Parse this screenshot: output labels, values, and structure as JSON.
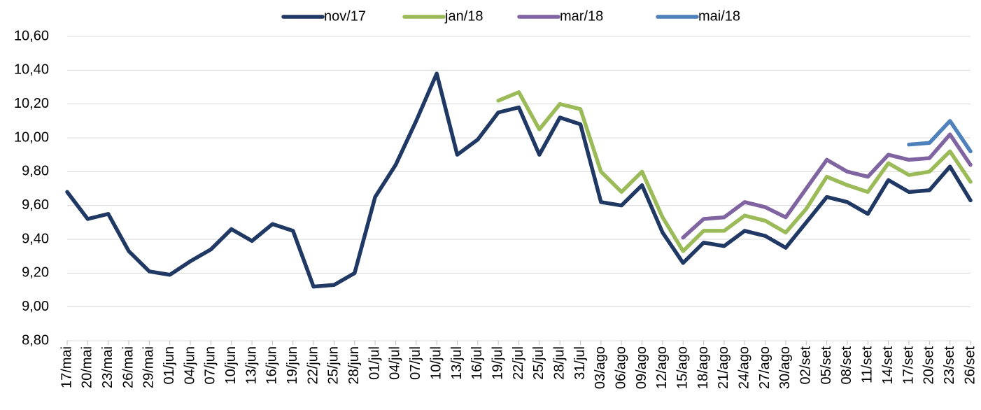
{
  "chart_data": {
    "type": "line",
    "categories": [
      "17/mai",
      "20/mai",
      "23/mai",
      "26/mai",
      "29/mai",
      "01/jun",
      "04/jun",
      "07/jun",
      "10/jun",
      "13/jun",
      "16/jun",
      "19/jun",
      "22/jun",
      "25/jun",
      "28/jun",
      "01/jul",
      "04/jul",
      "07/jul",
      "10/jul",
      "13/jul",
      "16/jul",
      "19/jul",
      "22/jul",
      "25/jul",
      "28/jul",
      "31/jul",
      "03/ago",
      "06/ago",
      "09/ago",
      "12/ago",
      "15/ago",
      "18/ago",
      "21/ago",
      "24/ago",
      "27/ago",
      "30/ago",
      "02/set",
      "05/set",
      "08/set",
      "11/set",
      "14/set",
      "17/set",
      "20/set",
      "23/set",
      "26/set"
    ],
    "series": [
      {
        "name": "nov/17",
        "color": "#1f3864",
        "values": [
          9.68,
          9.52,
          9.55,
          9.33,
          9.21,
          9.19,
          9.27,
          9.34,
          9.46,
          9.39,
          9.49,
          9.45,
          9.12,
          9.13,
          9.2,
          9.65,
          9.84,
          10.1,
          10.38,
          9.9,
          9.99,
          10.15,
          10.18,
          9.9,
          10.12,
          10.08,
          9.62,
          9.6,
          9.72,
          9.44,
          9.26,
          9.38,
          9.36,
          9.45,
          9.42,
          9.35,
          9.5,
          9.65,
          9.62,
          9.55,
          9.75,
          9.68,
          9.69,
          9.83,
          9.63
        ]
      },
      {
        "name": "jan/18",
        "color": "#9bbb59",
        "values": [
          null,
          null,
          null,
          null,
          null,
          null,
          null,
          null,
          null,
          null,
          null,
          null,
          null,
          null,
          null,
          null,
          null,
          null,
          null,
          null,
          null,
          10.22,
          10.27,
          10.05,
          10.2,
          10.17,
          9.8,
          9.68,
          9.8,
          9.53,
          9.33,
          9.45,
          9.45,
          9.54,
          9.51,
          9.44,
          9.58,
          9.77,
          9.72,
          9.68,
          9.85,
          9.78,
          9.8,
          9.92,
          9.74
        ]
      },
      {
        "name": "mar/18",
        "color": "#8064a2",
        "values": [
          null,
          null,
          null,
          null,
          null,
          null,
          null,
          null,
          null,
          null,
          null,
          null,
          null,
          null,
          null,
          null,
          null,
          null,
          null,
          null,
          null,
          null,
          null,
          null,
          null,
          null,
          null,
          null,
          null,
          null,
          9.41,
          9.52,
          9.53,
          9.62,
          9.59,
          9.53,
          9.7,
          9.87,
          9.8,
          9.77,
          9.9,
          9.87,
          9.88,
          10.02,
          9.84
        ]
      },
      {
        "name": "mai/18",
        "color": "#4f81bd",
        "values": [
          null,
          null,
          null,
          null,
          null,
          null,
          null,
          null,
          null,
          null,
          null,
          null,
          null,
          null,
          null,
          null,
          null,
          null,
          null,
          null,
          null,
          null,
          null,
          null,
          null,
          null,
          null,
          null,
          null,
          null,
          null,
          null,
          null,
          null,
          null,
          null,
          null,
          null,
          null,
          null,
          null,
          9.96,
          9.97,
          10.1,
          9.92
        ]
      }
    ],
    "ylim": [
      8.8,
      10.6
    ],
    "yticks": [
      {
        "value": 8.8,
        "label": "8,80"
      },
      {
        "value": 9.0,
        "label": "9,00"
      },
      {
        "value": 9.2,
        "label": "9,20"
      },
      {
        "value": 9.4,
        "label": "9,40"
      },
      {
        "value": 9.6,
        "label": "9,60"
      },
      {
        "value": 9.8,
        "label": "9,80"
      },
      {
        "value": 10.0,
        "label": "10,00"
      },
      {
        "value": 10.2,
        "label": "10,20"
      },
      {
        "value": 10.4,
        "label": "10,40"
      },
      {
        "value": 10.6,
        "label": "10,60"
      }
    ],
    "grid": true,
    "legend": "top"
  }
}
